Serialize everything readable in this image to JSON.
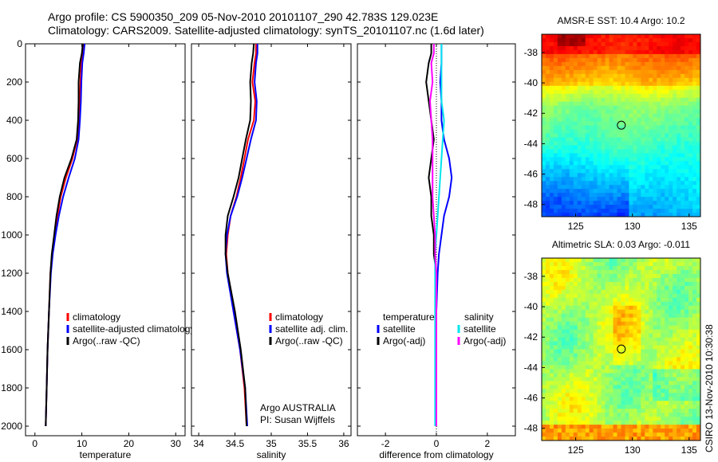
{
  "header": {
    "line1": "Argo profile: CS 5900350_209 05-Nov-2010 20101107_290 42.783S 129.023E",
    "line2": "Climatology: CARS2009. Satellite-adjusted climatology: synTS_20101107.nc (1.6d later)"
  },
  "footer": {
    "credit": "CSIRO 13-Nov-2010 10:30:38",
    "institution": "Argo AUSTRALIA",
    "pi": "PI: Susan Wijffels"
  },
  "colors": {
    "climatology": "#ff0000",
    "satellite": "#0000ff",
    "argo": "#000000",
    "salinity_satellite": "#00e5ee",
    "salinity_argo": "#ff00ff"
  },
  "chart_data": [
    {
      "id": "temperature",
      "type": "line",
      "xlabel": "temperature",
      "ylabel": "",
      "xlim": [
        -2,
        32
      ],
      "ylim": [
        2050,
        0
      ],
      "xticks": [
        0,
        10,
        20,
        30
      ],
      "yticks": [
        0,
        200,
        400,
        600,
        800,
        1000,
        1200,
        1400,
        1600,
        1800,
        2000
      ],
      "legend": [
        "climatology",
        "satellite-adjusted climatology",
        "Argo(..raw -QC)"
      ],
      "series": [
        {
          "name": "climatology",
          "color": "#ff0000",
          "x": [
            10.4,
            10.2,
            9.9,
            9.7,
            9.6,
            9.4,
            9.0,
            8.0,
            6.6,
            5.5,
            4.8,
            4.2,
            3.7,
            3.3,
            3.0,
            2.7,
            2.5,
            2.3
          ],
          "y": [
            0,
            50,
            100,
            200,
            300,
            400,
            500,
            600,
            700,
            800,
            900,
            1000,
            1100,
            1200,
            1400,
            1600,
            1800,
            2000
          ]
        },
        {
          "name": "satellite-adjusted climatology",
          "color": "#0000ff",
          "x": [
            10.6,
            10.4,
            10.1,
            9.9,
            9.8,
            9.6,
            9.3,
            8.5,
            7.2,
            6.0,
            5.1,
            4.4,
            3.8,
            3.4,
            3.0,
            2.7,
            2.5,
            2.3
          ],
          "y": [
            0,
            50,
            100,
            200,
            300,
            400,
            500,
            600,
            700,
            800,
            900,
            1000,
            1100,
            1200,
            1400,
            1600,
            1800,
            2000
          ]
        },
        {
          "name": "Argo(..raw -QC)",
          "color": "#000000",
          "x": [
            10.2,
            10.0,
            9.6,
            9.3,
            9.3,
            9.2,
            8.9,
            7.8,
            6.3,
            5.3,
            4.6,
            4.1,
            3.6,
            3.3,
            3.0,
            2.7,
            2.5,
            2.3
          ],
          "y": [
            0,
            50,
            100,
            200,
            300,
            400,
            500,
            600,
            700,
            800,
            900,
            1000,
            1100,
            1200,
            1400,
            1600,
            1800,
            2000
          ]
        }
      ]
    },
    {
      "id": "salinity",
      "type": "line",
      "xlabel": "salinity",
      "ylabel": "",
      "xlim": [
        33.9,
        36.1
      ],
      "ylim": [
        2050,
        0
      ],
      "xticks": [
        34,
        34.5,
        35,
        35.5,
        36
      ],
      "legend": [
        "climatology",
        "satellite adj. clim.",
        "Argo(..raw -QC)"
      ],
      "series": [
        {
          "name": "climatology",
          "color": "#ff0000",
          "x": [
            34.79,
            34.79,
            34.77,
            34.74,
            34.78,
            34.76,
            34.68,
            34.63,
            34.58,
            34.52,
            34.44,
            34.4,
            34.38,
            34.4,
            34.48,
            34.57,
            34.63,
            34.66
          ],
          "y": [
            0,
            50,
            100,
            200,
            300,
            400,
            500,
            600,
            700,
            800,
            900,
            1000,
            1100,
            1200,
            1400,
            1600,
            1800,
            2000
          ]
        },
        {
          "name": "satellite adj. clim.",
          "color": "#0000ff",
          "x": [
            34.81,
            34.81,
            34.79,
            34.77,
            34.8,
            34.79,
            34.72,
            34.66,
            34.6,
            34.53,
            34.44,
            34.39,
            34.37,
            34.39,
            34.48,
            34.57,
            34.64,
            34.67
          ],
          "y": [
            0,
            50,
            100,
            200,
            300,
            400,
            500,
            600,
            700,
            800,
            900,
            1000,
            1100,
            1200,
            1400,
            1600,
            1800,
            2000
          ]
        },
        {
          "name": "Argo(..raw -QC)",
          "color": "#000000",
          "x": [
            34.76,
            34.75,
            34.73,
            34.71,
            34.72,
            34.71,
            34.65,
            34.6,
            34.55,
            34.48,
            34.4,
            34.37,
            34.37,
            34.4,
            34.5,
            34.58,
            34.64,
            34.66
          ],
          "y": [
            0,
            50,
            100,
            200,
            300,
            400,
            500,
            600,
            700,
            800,
            900,
            1000,
            1100,
            1200,
            1400,
            1600,
            1800,
            2000
          ]
        }
      ]
    },
    {
      "id": "difference",
      "type": "line",
      "xlabel": "difference from climatology",
      "ylabel": "",
      "xlim": [
        -3.1,
        3.1
      ],
      "ylim": [
        2050,
        0
      ],
      "xticks": [
        -2,
        0,
        2
      ],
      "legend_temperature": {
        "title": "temperature",
        "entries": [
          "satellite",
          "Argo(-adj)"
        ]
      },
      "legend_salinity": {
        "title": "salinity",
        "entries": [
          "satellite",
          "Argo(-adj)"
        ]
      },
      "series": [
        {
          "name": "temperature satellite",
          "color": "#0000ff",
          "x": [
            0.2,
            0.2,
            0.2,
            0.15,
            0.2,
            0.2,
            0.3,
            0.5,
            0.6,
            0.5,
            0.3,
            0.2,
            0.1,
            0.05,
            0.0,
            0.0,
            0.0,
            0.0
          ],
          "y": [
            0,
            50,
            100,
            200,
            300,
            400,
            500,
            600,
            700,
            800,
            900,
            1000,
            1100,
            1200,
            1400,
            1600,
            1800,
            2000
          ]
        },
        {
          "name": "temperature Argo(-adj)",
          "color": "#000000",
          "x": [
            -0.2,
            -0.2,
            -0.3,
            -0.4,
            -0.3,
            -0.2,
            -0.1,
            -0.2,
            -0.3,
            -0.2,
            -0.2,
            -0.1,
            -0.1,
            0.0,
            0.0,
            0.0,
            0.0,
            0.0
          ],
          "y": [
            0,
            50,
            100,
            200,
            300,
            400,
            500,
            600,
            700,
            800,
            900,
            1000,
            1100,
            1200,
            1400,
            1600,
            1800,
            2000
          ]
        },
        {
          "name": "salinity satellite",
          "color": "#00e5ee",
          "x": [
            0.2,
            0.2,
            0.2,
            0.2,
            0.2,
            0.3,
            0.25,
            0.2,
            0.15,
            0.1,
            0.05,
            0.0,
            -0.05,
            -0.05,
            -0.05,
            -0.05,
            -0.05,
            -0.05
          ],
          "y": [
            0,
            50,
            100,
            200,
            300,
            400,
            500,
            600,
            700,
            800,
            900,
            1000,
            1100,
            1200,
            1400,
            1600,
            1800,
            2000
          ]
        },
        {
          "name": "salinity Argo(-adj)",
          "color": "#ff00ff",
          "x": [
            -0.1,
            -0.1,
            -0.2,
            -0.15,
            -0.25,
            -0.2,
            -0.15,
            -0.15,
            -0.15,
            -0.15,
            -0.1,
            -0.05,
            -0.05,
            0.0,
            0.0,
            0.0,
            0.0,
            0.0
          ],
          "y": [
            0,
            50,
            100,
            200,
            300,
            400,
            500,
            600,
            700,
            800,
            900,
            1000,
            1100,
            1200,
            1400,
            1600,
            1800,
            2000
          ]
        }
      ]
    },
    {
      "id": "sst_map",
      "type": "heatmap",
      "title": "AMSR-E SST: 10.4 Argo: 10.2",
      "xlim": [
        122,
        136
      ],
      "ylim": [
        -48.8,
        -36.8
      ],
      "xticks": [
        125,
        130,
        135
      ],
      "yticks": [
        -38,
        -40,
        -42,
        -44,
        -46,
        -48
      ],
      "marker": {
        "lon": 129.023,
        "lat": -42.783
      }
    },
    {
      "id": "sla_map",
      "type": "heatmap",
      "title": "Altimetric SLA: 0.03 Argo: -0.011",
      "xlim": [
        122,
        136
      ],
      "ylim": [
        -48.8,
        -36.8
      ],
      "xticks": [
        125,
        130,
        135
      ],
      "yticks": [
        -38,
        -40,
        -42,
        -44,
        -46,
        -48
      ],
      "marker": {
        "lon": 129.023,
        "lat": -42.783
      }
    }
  ]
}
